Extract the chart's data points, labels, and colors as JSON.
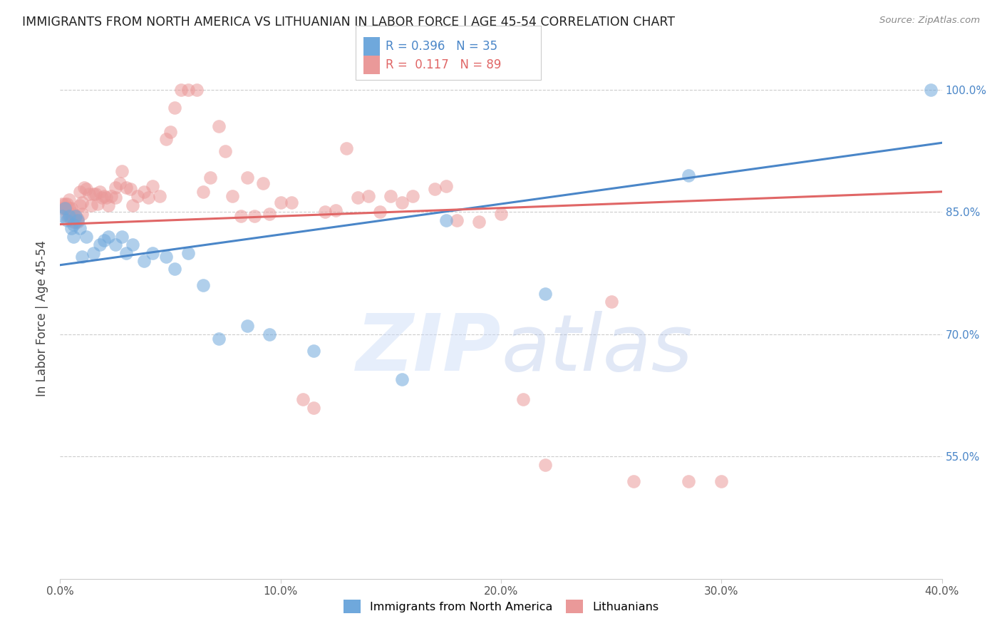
{
  "title": "IMMIGRANTS FROM NORTH AMERICA VS LITHUANIAN IN LABOR FORCE | AGE 45-54 CORRELATION CHART",
  "source_text": "Source: ZipAtlas.com",
  "ylabel": "In Labor Force | Age 45-54",
  "xlim": [
    0.0,
    0.4
  ],
  "ylim": [
    0.4,
    1.04
  ],
  "xtick_labels": [
    "0.0%",
    "10.0%",
    "20.0%",
    "30.0%",
    "40.0%"
  ],
  "xtick_vals": [
    0.0,
    0.1,
    0.2,
    0.3,
    0.4
  ],
  "ytick_labels_right": [
    "100.0%",
    "85.0%",
    "70.0%",
    "55.0%"
  ],
  "ytick_vals": [
    1.0,
    0.85,
    0.7,
    0.55
  ],
  "blue_R": 0.396,
  "blue_N": 35,
  "pink_R": 0.117,
  "pink_N": 89,
  "blue_color": "#6fa8dc",
  "pink_color": "#ea9999",
  "blue_line_color": "#4a86c8",
  "pink_line_color": "#e06666",
  "legend_label_blue": "Immigrants from North America",
  "legend_label_pink": "Lithuanians",
  "watermark_color": "#c9daf8",
  "blue_x": [
    0.001,
    0.002,
    0.003,
    0.004,
    0.005,
    0.006,
    0.006,
    0.007,
    0.008,
    0.009,
    0.01,
    0.012,
    0.015,
    0.018,
    0.02,
    0.022,
    0.025,
    0.028,
    0.03,
    0.033,
    0.038,
    0.042,
    0.048,
    0.052,
    0.058,
    0.065,
    0.072,
    0.085,
    0.095,
    0.115,
    0.155,
    0.175,
    0.22,
    0.285,
    0.395
  ],
  "blue_y": [
    0.845,
    0.855,
    0.84,
    0.845,
    0.83,
    0.835,
    0.82,
    0.845,
    0.84,
    0.83,
    0.795,
    0.82,
    0.8,
    0.81,
    0.815,
    0.82,
    0.81,
    0.82,
    0.8,
    0.81,
    0.79,
    0.8,
    0.795,
    0.78,
    0.8,
    0.76,
    0.695,
    0.71,
    0.7,
    0.68,
    0.645,
    0.84,
    0.75,
    0.895,
    1.0
  ],
  "pink_x": [
    0.001,
    0.001,
    0.002,
    0.002,
    0.003,
    0.003,
    0.003,
    0.004,
    0.004,
    0.004,
    0.005,
    0.005,
    0.005,
    0.006,
    0.006,
    0.006,
    0.007,
    0.007,
    0.008,
    0.008,
    0.009,
    0.009,
    0.01,
    0.01,
    0.011,
    0.012,
    0.013,
    0.014,
    0.015,
    0.016,
    0.017,
    0.018,
    0.019,
    0.02,
    0.021,
    0.022,
    0.023,
    0.025,
    0.025,
    0.027,
    0.028,
    0.03,
    0.032,
    0.033,
    0.035,
    0.038,
    0.04,
    0.042,
    0.045,
    0.048,
    0.05,
    0.052,
    0.055,
    0.058,
    0.062,
    0.065,
    0.068,
    0.072,
    0.075,
    0.078,
    0.082,
    0.085,
    0.088,
    0.092,
    0.095,
    0.1,
    0.105,
    0.11,
    0.115,
    0.12,
    0.125,
    0.13,
    0.135,
    0.14,
    0.145,
    0.15,
    0.155,
    0.16,
    0.17,
    0.175,
    0.18,
    0.19,
    0.2,
    0.21,
    0.22,
    0.25,
    0.26,
    0.285,
    0.3
  ],
  "pink_y": [
    0.86,
    0.855,
    0.86,
    0.855,
    0.86,
    0.855,
    0.845,
    0.865,
    0.855,
    0.848,
    0.855,
    0.845,
    0.84,
    0.848,
    0.842,
    0.838,
    0.845,
    0.838,
    0.842,
    0.838,
    0.875,
    0.858,
    0.848,
    0.862,
    0.88,
    0.878,
    0.872,
    0.858,
    0.872,
    0.872,
    0.86,
    0.875,
    0.868,
    0.87,
    0.868,
    0.858,
    0.87,
    0.88,
    0.868,
    0.885,
    0.9,
    0.88,
    0.878,
    0.858,
    0.87,
    0.875,
    0.868,
    0.882,
    0.87,
    0.94,
    0.948,
    0.978,
    1.0,
    1.0,
    1.0,
    0.875,
    0.892,
    0.955,
    0.925,
    0.87,
    0.845,
    0.892,
    0.845,
    0.885,
    0.848,
    0.862,
    0.862,
    0.62,
    0.61,
    0.85,
    0.852,
    0.928,
    0.868,
    0.87,
    0.85,
    0.87,
    0.862,
    0.87,
    0.878,
    0.882,
    0.84,
    0.838,
    0.848,
    0.62,
    0.54,
    0.74,
    0.52,
    0.52,
    0.52
  ]
}
